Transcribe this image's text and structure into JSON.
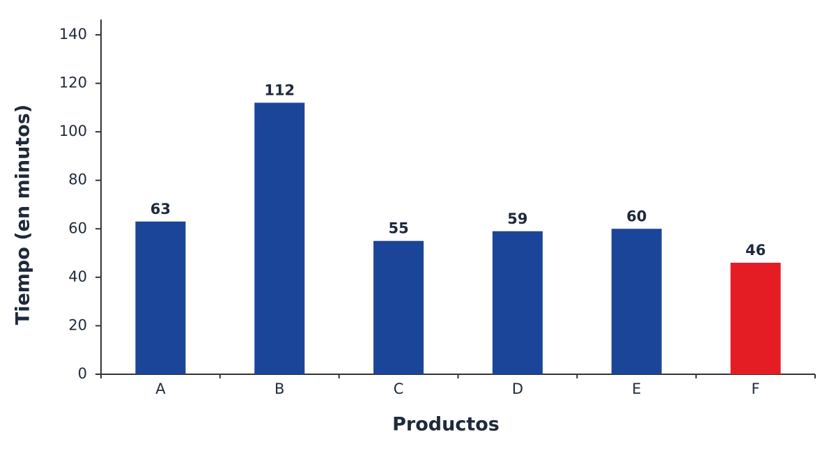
{
  "chart_data": {
    "type": "bar",
    "x_label": "Productos",
    "y_label": "Tiempo (en minutos)",
    "categories": [
      "A",
      "B",
      "C",
      "D",
      "E",
      "F"
    ],
    "values": [
      63,
      112,
      55,
      59,
      60,
      46
    ],
    "colors": [
      "#1b4598",
      "#1b4598",
      "#1b4598",
      "#1b4598",
      "#1b4598",
      "#e41d25"
    ],
    "ylim": [
      0,
      140
    ],
    "yticks": [
      0,
      20,
      40,
      60,
      80,
      100,
      120,
      140
    ],
    "grid": false
  }
}
